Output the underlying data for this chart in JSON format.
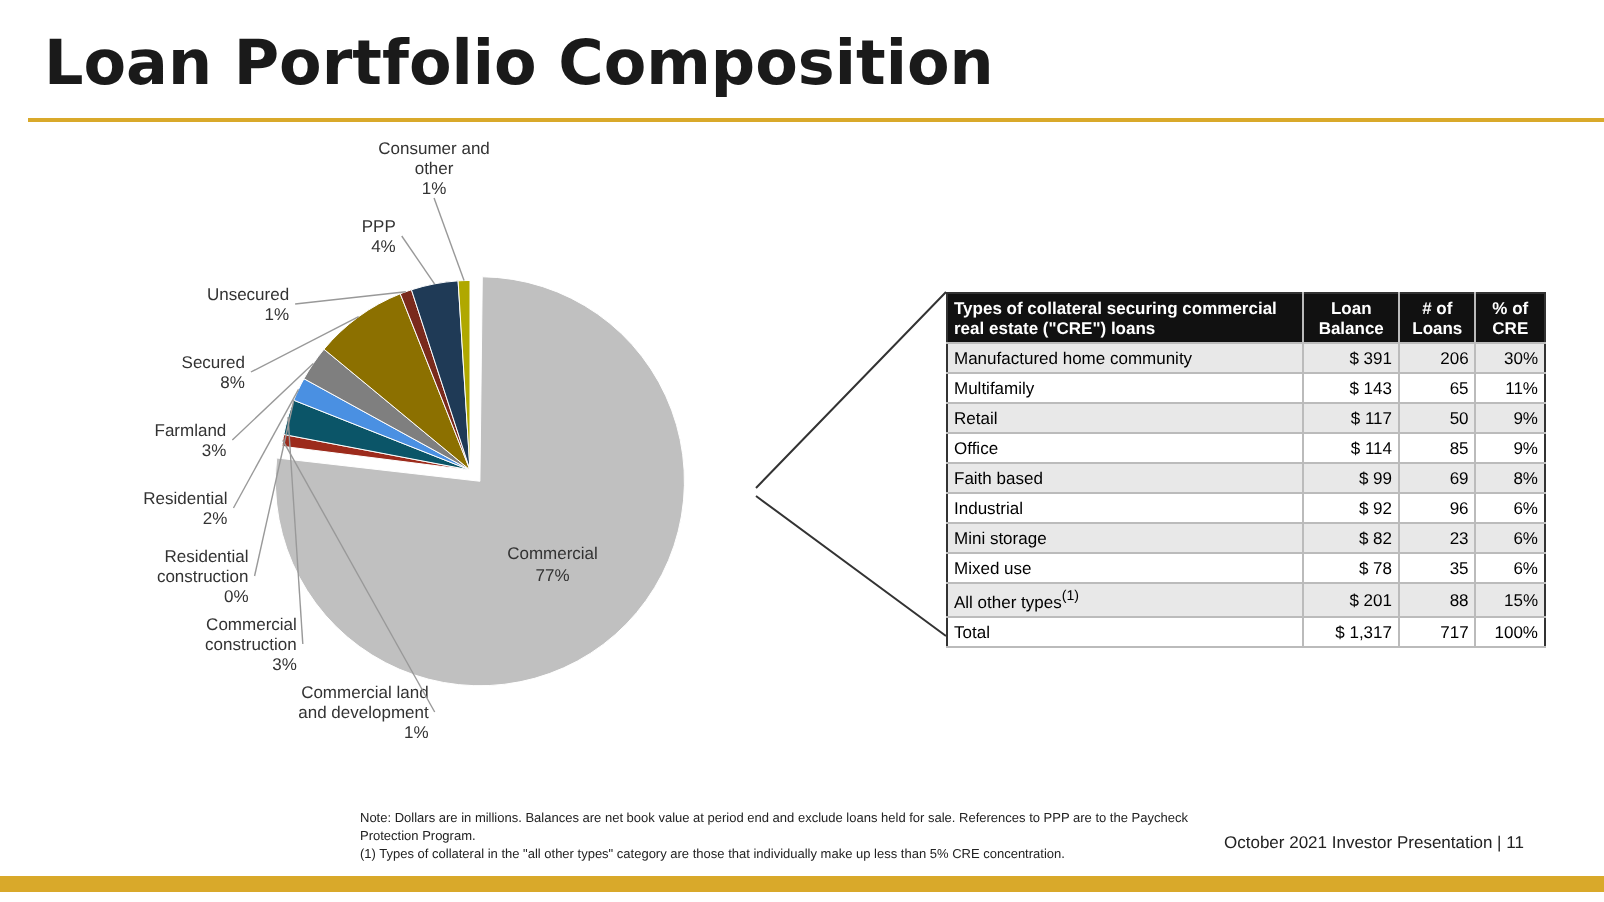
{
  "chart_data": [
    {
      "type": "pie",
      "title": "Loan Portfolio Composition",
      "categories": [
        "Commercial",
        "Commercial land and development",
        "Commercial construction",
        "Residential construction",
        "Residential",
        "Farmland",
        "Secured",
        "Unsecured",
        "PPP",
        "Consumer and other"
      ],
      "values": [
        77,
        1,
        3,
        0,
        2,
        3,
        8,
        1,
        4,
        1
      ],
      "value_labels": [
        "77%",
        "1%",
        "3%",
        "0%",
        "2%",
        "3%",
        "8%",
        "1%",
        "4%",
        "1%"
      ],
      "colors": [
        "#c0c0c0",
        "#9c2b1c",
        "#0b5568",
        "#2e75b6",
        "#4a90e2",
        "#7f7f7f",
        "#8c7000",
        "#7a2a1c",
        "#1f3a56",
        "#b0a800"
      ],
      "annotations": [
        "Note: Dollars are in millions. Balances are net book value at period end and exclude loans held for sale. References to PPP are to the Paycheck Protection Program.",
        "(1)   Types of collateral in the \"all other types\" category are those that individually make up less than 5% CRE concentration.",
        "October 2021 Investor Presentation  |  11"
      ]
    },
    {
      "type": "other",
      "annotations": [
        "Types of collateral securing commercial real estate (\"CRE\") loans",
        "Loan Balance",
        "# of Loans",
        "% of CRE",
        "Manufactured home community",
        "$ 391",
        "206",
        "30%",
        "Multifamily",
        "$ 143",
        "65",
        "11%",
        "Retail",
        "$ 117",
        "50",
        "9%",
        "Office",
        "$ 114",
        "85",
        "9%",
        "Faith based",
        "$ 99",
        "69",
        "8%",
        "Industrial",
        "$ 92",
        "96",
        "6%",
        "Mini storage",
        "$ 82",
        "23",
        "6%",
        "Mixed use",
        "$ 78",
        "35",
        "6%",
        "All other types$^{(1)}$",
        "$ 201",
        "88",
        "15%",
        "Total",
        "$ 1,317",
        "717",
        "100%"
      ]
    }
  ]
}
